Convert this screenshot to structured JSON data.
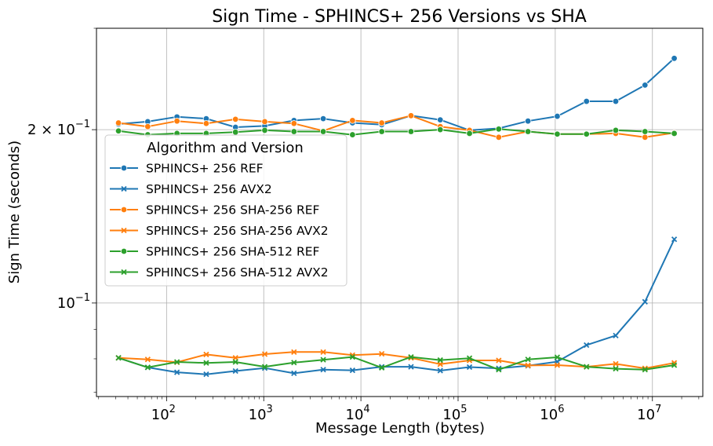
{
  "chart_data": {
    "type": "line",
    "title": "Sign Time - SPHINCS+ 256 Versions vs SHA",
    "xlabel": "Message Length (bytes)",
    "ylabel": "Sign Time (seconds)",
    "x_scale": "log",
    "y_scale": "log",
    "xlim": [
      19,
      33000000
    ],
    "ylim": [
      0.0688,
      0.3
    ],
    "x_ticks": [
      {
        "value": 100,
        "base": "10",
        "exp": "2"
      },
      {
        "value": 1000,
        "base": "10",
        "exp": "3"
      },
      {
        "value": 10000,
        "base": "10",
        "exp": "4"
      },
      {
        "value": 100000,
        "base": "10",
        "exp": "5"
      },
      {
        "value": 1000000,
        "base": "10",
        "exp": "6"
      },
      {
        "value": 10000000,
        "base": "10",
        "exp": "7"
      }
    ],
    "y_ticks": [
      {
        "value": 0.2,
        "mantissa": "2",
        "times": "×",
        "base": "10",
        "exp": "−1"
      },
      {
        "value": 0.1,
        "mantissa": "",
        "times": "",
        "base": "10",
        "exp": "−1"
      }
    ],
    "grid": true,
    "legend": {
      "title": "Algorithm and Version",
      "placement": "center-left"
    },
    "x": [
      32,
      64,
      128,
      256,
      512,
      1024,
      2048,
      4096,
      8192,
      16384,
      32768,
      65536,
      131072,
      262144,
      524288,
      1048576,
      2097152,
      4194304,
      8388608,
      16777216
    ],
    "series": [
      {
        "name": "SPHINCS+ 256 REF",
        "color": "#1f77b4",
        "marker": "circle",
        "values": [
          0.2045,
          0.2065,
          0.2105,
          0.209,
          0.202,
          0.203,
          0.2075,
          0.209,
          0.2055,
          0.204,
          0.2115,
          0.208,
          0.1995,
          0.201,
          0.207,
          0.211,
          0.224,
          0.224,
          0.239,
          0.266
        ]
      },
      {
        "name": "SPHINCS+ 256 AVX2",
        "color": "#1f77b4",
        "marker": "x",
        "values": [
          0.0803,
          0.0773,
          0.0758,
          0.0752,
          0.0762,
          0.0771,
          0.0755,
          0.0766,
          0.0764,
          0.0775,
          0.0775,
          0.0763,
          0.0774,
          0.077,
          0.0778,
          0.0791,
          0.0845,
          0.0878,
          0.1005,
          0.129
        ]
      },
      {
        "name": "SPHINCS+ 256 SHA-256 REF",
        "color": "#ff7f0e",
        "marker": "circle",
        "values": [
          0.2055,
          0.2025,
          0.207,
          0.205,
          0.2085,
          0.2065,
          0.205,
          0.199,
          0.2075,
          0.2055,
          0.2115,
          0.2025,
          0.1995,
          0.194,
          0.1985,
          0.1965,
          0.1965,
          0.197,
          0.194,
          0.1975
        ]
      },
      {
        "name": "SPHINCS+ 256 SHA-256 AVX2",
        "color": "#ff7f0e",
        "marker": "x",
        "values": [
          0.0803,
          0.0798,
          0.0789,
          0.0814,
          0.0803,
          0.0815,
          0.0822,
          0.0822,
          0.0812,
          0.0816,
          0.0803,
          0.0783,
          0.0795,
          0.0795,
          0.0779,
          0.078,
          0.0775,
          0.0784,
          0.077,
          0.0787
        ]
      },
      {
        "name": "SPHINCS+ 256 SHA-512 REF",
        "color": "#2ca02c",
        "marker": "circle",
        "values": [
          0.199,
          0.196,
          0.197,
          0.197,
          0.198,
          0.1995,
          0.1985,
          0.1985,
          0.196,
          0.1985,
          0.1985,
          0.2,
          0.197,
          0.2005,
          0.1985,
          0.1965,
          0.1965,
          0.1995,
          0.1985,
          0.197
        ]
      },
      {
        "name": "SPHINCS+ 256 SHA-512 AVX2",
        "color": "#2ca02c",
        "marker": "x",
        "values": [
          0.0803,
          0.0773,
          0.079,
          0.0787,
          0.079,
          0.0775,
          0.0788,
          0.0797,
          0.0806,
          0.0772,
          0.0806,
          0.0796,
          0.0802,
          0.0766,
          0.0798,
          0.0805,
          0.0775,
          0.0769,
          0.0766,
          0.078
        ]
      }
    ]
  }
}
